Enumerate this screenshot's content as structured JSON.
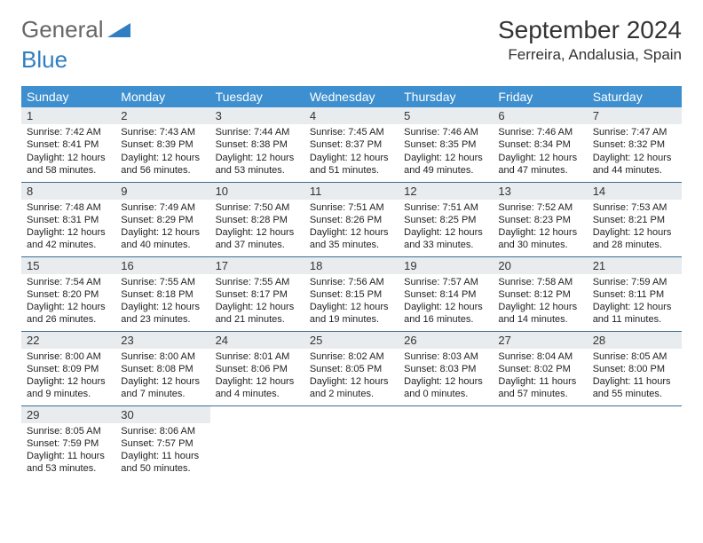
{
  "brand": {
    "part1": "General",
    "part2": "Blue"
  },
  "title": "September 2024",
  "location": "Ferreira, Andalusia, Spain",
  "colors": {
    "header_bg": "#3d8fcf",
    "header_fg": "#ffffff",
    "daynum_bg": "#e8ecef",
    "row_border": "#3d6d94",
    "brand_gray": "#666666",
    "brand_blue": "#2f7fc2"
  },
  "weekdays": [
    "Sunday",
    "Monday",
    "Tuesday",
    "Wednesday",
    "Thursday",
    "Friday",
    "Saturday"
  ],
  "weeks": [
    [
      {
        "n": "1",
        "sr": "Sunrise: 7:42 AM",
        "ss": "Sunset: 8:41 PM",
        "d1": "Daylight: 12 hours",
        "d2": "and 58 minutes."
      },
      {
        "n": "2",
        "sr": "Sunrise: 7:43 AM",
        "ss": "Sunset: 8:39 PM",
        "d1": "Daylight: 12 hours",
        "d2": "and 56 minutes."
      },
      {
        "n": "3",
        "sr": "Sunrise: 7:44 AM",
        "ss": "Sunset: 8:38 PM",
        "d1": "Daylight: 12 hours",
        "d2": "and 53 minutes."
      },
      {
        "n": "4",
        "sr": "Sunrise: 7:45 AM",
        "ss": "Sunset: 8:37 PM",
        "d1": "Daylight: 12 hours",
        "d2": "and 51 minutes."
      },
      {
        "n": "5",
        "sr": "Sunrise: 7:46 AM",
        "ss": "Sunset: 8:35 PM",
        "d1": "Daylight: 12 hours",
        "d2": "and 49 minutes."
      },
      {
        "n": "6",
        "sr": "Sunrise: 7:46 AM",
        "ss": "Sunset: 8:34 PM",
        "d1": "Daylight: 12 hours",
        "d2": "and 47 minutes."
      },
      {
        "n": "7",
        "sr": "Sunrise: 7:47 AM",
        "ss": "Sunset: 8:32 PM",
        "d1": "Daylight: 12 hours",
        "d2": "and 44 minutes."
      }
    ],
    [
      {
        "n": "8",
        "sr": "Sunrise: 7:48 AM",
        "ss": "Sunset: 8:31 PM",
        "d1": "Daylight: 12 hours",
        "d2": "and 42 minutes."
      },
      {
        "n": "9",
        "sr": "Sunrise: 7:49 AM",
        "ss": "Sunset: 8:29 PM",
        "d1": "Daylight: 12 hours",
        "d2": "and 40 minutes."
      },
      {
        "n": "10",
        "sr": "Sunrise: 7:50 AM",
        "ss": "Sunset: 8:28 PM",
        "d1": "Daylight: 12 hours",
        "d2": "and 37 minutes."
      },
      {
        "n": "11",
        "sr": "Sunrise: 7:51 AM",
        "ss": "Sunset: 8:26 PM",
        "d1": "Daylight: 12 hours",
        "d2": "and 35 minutes."
      },
      {
        "n": "12",
        "sr": "Sunrise: 7:51 AM",
        "ss": "Sunset: 8:25 PM",
        "d1": "Daylight: 12 hours",
        "d2": "and 33 minutes."
      },
      {
        "n": "13",
        "sr": "Sunrise: 7:52 AM",
        "ss": "Sunset: 8:23 PM",
        "d1": "Daylight: 12 hours",
        "d2": "and 30 minutes."
      },
      {
        "n": "14",
        "sr": "Sunrise: 7:53 AM",
        "ss": "Sunset: 8:21 PM",
        "d1": "Daylight: 12 hours",
        "d2": "and 28 minutes."
      }
    ],
    [
      {
        "n": "15",
        "sr": "Sunrise: 7:54 AM",
        "ss": "Sunset: 8:20 PM",
        "d1": "Daylight: 12 hours",
        "d2": "and 26 minutes."
      },
      {
        "n": "16",
        "sr": "Sunrise: 7:55 AM",
        "ss": "Sunset: 8:18 PM",
        "d1": "Daylight: 12 hours",
        "d2": "and 23 minutes."
      },
      {
        "n": "17",
        "sr": "Sunrise: 7:55 AM",
        "ss": "Sunset: 8:17 PM",
        "d1": "Daylight: 12 hours",
        "d2": "and 21 minutes."
      },
      {
        "n": "18",
        "sr": "Sunrise: 7:56 AM",
        "ss": "Sunset: 8:15 PM",
        "d1": "Daylight: 12 hours",
        "d2": "and 19 minutes."
      },
      {
        "n": "19",
        "sr": "Sunrise: 7:57 AM",
        "ss": "Sunset: 8:14 PM",
        "d1": "Daylight: 12 hours",
        "d2": "and 16 minutes."
      },
      {
        "n": "20",
        "sr": "Sunrise: 7:58 AM",
        "ss": "Sunset: 8:12 PM",
        "d1": "Daylight: 12 hours",
        "d2": "and 14 minutes."
      },
      {
        "n": "21",
        "sr": "Sunrise: 7:59 AM",
        "ss": "Sunset: 8:11 PM",
        "d1": "Daylight: 12 hours",
        "d2": "and 11 minutes."
      }
    ],
    [
      {
        "n": "22",
        "sr": "Sunrise: 8:00 AM",
        "ss": "Sunset: 8:09 PM",
        "d1": "Daylight: 12 hours",
        "d2": "and 9 minutes."
      },
      {
        "n": "23",
        "sr": "Sunrise: 8:00 AM",
        "ss": "Sunset: 8:08 PM",
        "d1": "Daylight: 12 hours",
        "d2": "and 7 minutes."
      },
      {
        "n": "24",
        "sr": "Sunrise: 8:01 AM",
        "ss": "Sunset: 8:06 PM",
        "d1": "Daylight: 12 hours",
        "d2": "and 4 minutes."
      },
      {
        "n": "25",
        "sr": "Sunrise: 8:02 AM",
        "ss": "Sunset: 8:05 PM",
        "d1": "Daylight: 12 hours",
        "d2": "and 2 minutes."
      },
      {
        "n": "26",
        "sr": "Sunrise: 8:03 AM",
        "ss": "Sunset: 8:03 PM",
        "d1": "Daylight: 12 hours",
        "d2": "and 0 minutes."
      },
      {
        "n": "27",
        "sr": "Sunrise: 8:04 AM",
        "ss": "Sunset: 8:02 PM",
        "d1": "Daylight: 11 hours",
        "d2": "and 57 minutes."
      },
      {
        "n": "28",
        "sr": "Sunrise: 8:05 AM",
        "ss": "Sunset: 8:00 PM",
        "d1": "Daylight: 11 hours",
        "d2": "and 55 minutes."
      }
    ],
    [
      {
        "n": "29",
        "sr": "Sunrise: 8:05 AM",
        "ss": "Sunset: 7:59 PM",
        "d1": "Daylight: 11 hours",
        "d2": "and 53 minutes."
      },
      {
        "n": "30",
        "sr": "Sunrise: 8:06 AM",
        "ss": "Sunset: 7:57 PM",
        "d1": "Daylight: 11 hours",
        "d2": "and 50 minutes."
      },
      null,
      null,
      null,
      null,
      null
    ]
  ]
}
